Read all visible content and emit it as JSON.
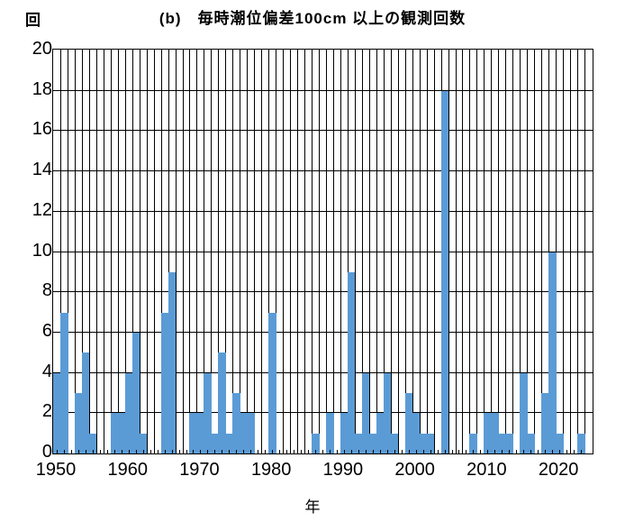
{
  "title": "(b)　毎時潮位偏差100cm 以上の観測回数",
  "y_unit_label": "回",
  "x_axis_title": "年",
  "colors": {
    "bar": "#5b9bd5",
    "grid": "#000000",
    "background": "#ffffff"
  },
  "chart_data": {
    "type": "bar",
    "title": "(b) 毎時潮位偏差100cm 以上の観測回数",
    "xlabel": "年",
    "ylabel": "回",
    "x_start": 1950,
    "x_end": 2024,
    "xticks_labeled": [
      1950,
      1960,
      1970,
      1980,
      1990,
      2000,
      2010,
      2020
    ],
    "ylim": [
      0,
      20
    ],
    "ytick_step": 2,
    "yticks": [
      0,
      2,
      4,
      6,
      8,
      10,
      12,
      14,
      16,
      18,
      20
    ],
    "grid": "both, black yearly vertical lines and horizontal lines every 2",
    "legend_position": "none",
    "years": [
      1950,
      1951,
      1952,
      1953,
      1954,
      1955,
      1956,
      1957,
      1958,
      1959,
      1960,
      1961,
      1962,
      1963,
      1964,
      1965,
      1966,
      1967,
      1968,
      1969,
      1970,
      1971,
      1972,
      1973,
      1974,
      1975,
      1976,
      1977,
      1978,
      1979,
      1980,
      1981,
      1982,
      1983,
      1984,
      1985,
      1986,
      1987,
      1988,
      1989,
      1990,
      1991,
      1992,
      1993,
      1994,
      1995,
      1996,
      1997,
      1998,
      1999,
      2000,
      2001,
      2002,
      2003,
      2004,
      2005,
      2006,
      2007,
      2008,
      2009,
      2010,
      2011,
      2012,
      2013,
      2014,
      2015,
      2016,
      2017,
      2018,
      2019,
      2020,
      2021,
      2022,
      2023
    ],
    "values": [
      4,
      7,
      0,
      3,
      5,
      1,
      0,
      0,
      2,
      2,
      4,
      6,
      1,
      0,
      0,
      7,
      9,
      0,
      0,
      2,
      2,
      4,
      1,
      5,
      1,
      3,
      2,
      2,
      0,
      0,
      7,
      0,
      0,
      0,
      0,
      0,
      1,
      0,
      2,
      0,
      2,
      9,
      1,
      4,
      1,
      2,
      4,
      1,
      0,
      3,
      2,
      1,
      1,
      0,
      18,
      0,
      0,
      0,
      1,
      0,
      2,
      2,
      1,
      1,
      0,
      4,
      1,
      0,
      3,
      10,
      1,
      0,
      0,
      1
    ]
  }
}
